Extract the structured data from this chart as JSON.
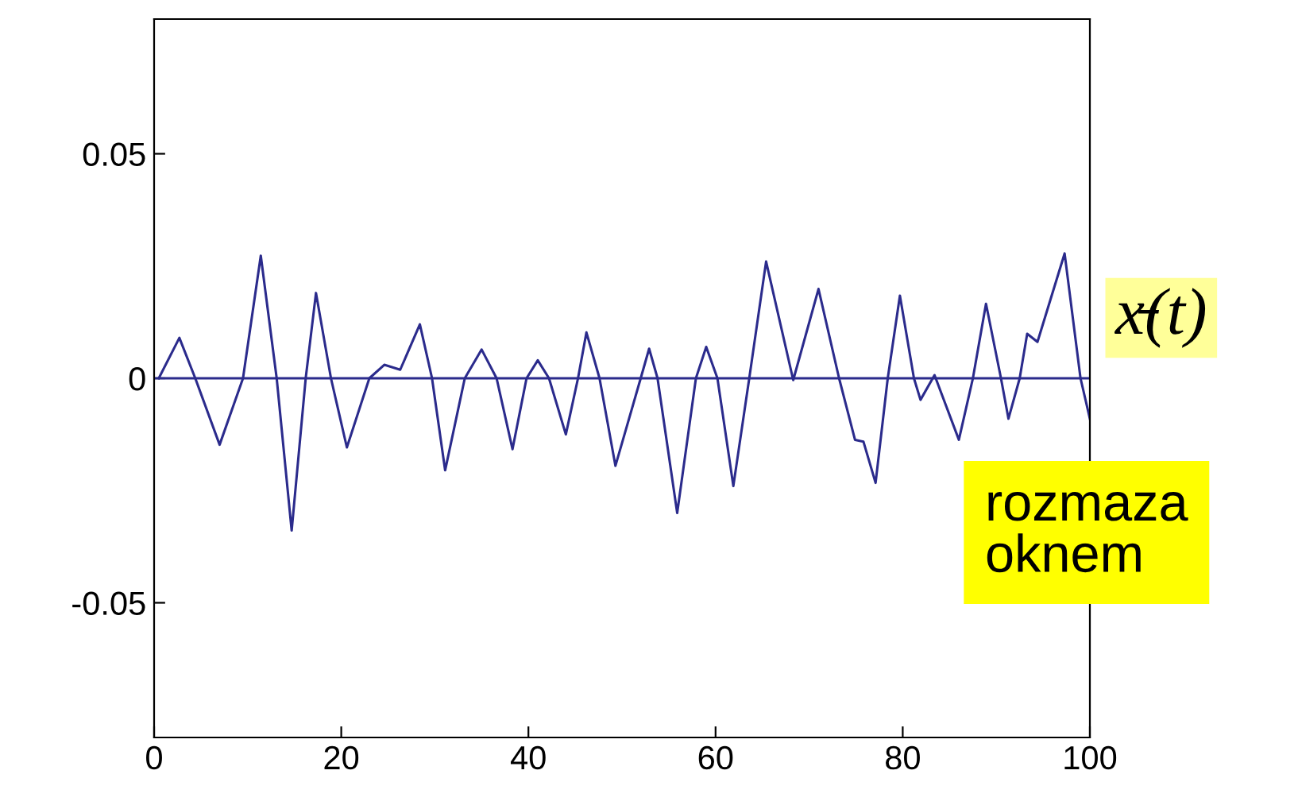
{
  "chart_data": {
    "type": "line",
    "x": [
      0.5,
      2.7,
      4.4,
      7.0,
      9.5,
      11.4,
      13.1,
      14.7,
      16.2,
      17.3,
      18.9,
      20.6,
      23.0,
      24.6,
      26.3,
      28.4,
      29.7,
      31.1,
      33.2,
      35.0,
      36.6,
      38.3,
      39.8,
      41.0,
      42.2,
      44.0,
      45.3,
      46.2,
      47.6,
      49.3,
      52.0,
      52.9,
      53.8,
      55.9,
      57.9,
      59.0,
      60.2,
      61.9,
      63.6,
      65.4,
      68.3,
      71.0,
      73.2,
      74.9,
      75.8,
      77.1,
      78.4,
      79.7,
      81.2,
      81.9,
      83.4,
      86.0,
      87.5,
      88.9,
      90.5,
      91.3,
      92.5,
      93.3,
      94.4,
      97.3,
      99.0,
      100
    ],
    "series": [
      {
        "color": "#2b2b8c",
        "values": [
          0,
          0.009,
          0,
          -0.0148,
          0,
          0.0273,
          0,
          -0.0339,
          0,
          0.019,
          0,
          -0.0154,
          0,
          0.003,
          0.0019,
          0.012,
          0,
          -0.0205,
          0,
          0.0064,
          0,
          -0.0158,
          0,
          0.004,
          0,
          -0.0125,
          0,
          0.0102,
          0,
          -0.0195,
          0,
          0.0066,
          0,
          -0.03,
          0,
          0.007,
          0,
          -0.024,
          0,
          0.026,
          -0.0004,
          0.0199,
          0,
          -0.0137,
          -0.0141,
          -0.0233,
          0,
          0.0184,
          0,
          -0.0048,
          0.0007,
          -0.0137,
          0,
          0.0166,
          0,
          -0.009,
          0,
          0.0099,
          0.0081,
          0.0278,
          0,
          -0.009
        ]
      }
    ],
    "xlim": [
      0,
      100
    ],
    "xticks": [
      0,
      20,
      40,
      60,
      80,
      100
    ],
    "ylim": [
      -0.08,
      0.08
    ],
    "yticks": [
      {
        "value": -0.05,
        "label": "-0.05"
      },
      0,
      {
        "value": 0.05,
        "label": "0.05"
      }
    ],
    "ref_lines": [
      {
        "axis": "y",
        "value": 0,
        "color": "#2b2b8c"
      }
    ],
    "annotations": [
      "x̵(t)",
      "rozmaza\noknem"
    ],
    "grid": false,
    "legend": false
  }
}
